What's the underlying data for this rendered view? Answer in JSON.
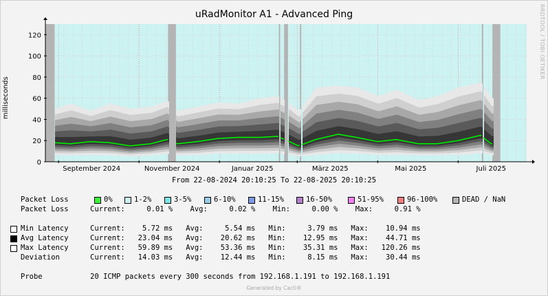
{
  "page": {
    "title": "uRadMonitor A1 - Advanced Ping",
    "watermark": "RRDTOOL / TOBI OETIKER",
    "range_text": "From 22-08-2024 20:10:25 To 22-08-2025 20:10:25",
    "footer": "Generated by Cacti®"
  },
  "chart_data": {
    "type": "area",
    "title": "uRadMonitor A1 - Advanced Ping",
    "ylabel": "milliseconds",
    "ylim": [
      0,
      130
    ],
    "yticks": [
      0,
      20,
      40,
      60,
      80,
      100,
      120
    ],
    "x_range": [
      "2024-08-22",
      "2025-08-22"
    ],
    "month_ticks": [
      {
        "label": "September 2024",
        "date": "2024-09-01"
      },
      {
        "label": "November 2024",
        "date": "2024-11-01"
      },
      {
        "label": "Januar 2025",
        "date": "2025-01-01"
      },
      {
        "label": "März 2025",
        "date": "2025-03-01"
      },
      {
        "label": "Mai 2025",
        "date": "2025-05-01"
      },
      {
        "label": "Juli 2025",
        "date": "2025-07-01"
      }
    ],
    "grid": true,
    "colors": {
      "background_ok": "#ccf2f2",
      "dead": "#b4b4b4",
      "avg_line": "#00ee00",
      "smoke": [
        "#e8e8e8",
        "#cfcfcf",
        "#a8a8a8",
        "#808080",
        "#5a5a5a",
        "#363636"
      ]
    },
    "dead_periods": [
      {
        "start": "2024-08-22",
        "end": "2024-08-29"
      },
      {
        "start": "2024-11-23",
        "end": "2024-11-29"
      },
      {
        "start": "2025-02-15",
        "end": "2025-02-16"
      },
      {
        "start": "2025-02-19",
        "end": "2025-02-22"
      },
      {
        "start": "2025-03-03",
        "end": "2025-03-04"
      },
      {
        "start": "2025-07-19",
        "end": "2025-07-20"
      },
      {
        "start": "2025-07-27",
        "end": "2025-08-02"
      }
    ],
    "series": [
      {
        "name": "Avg Latency",
        "x": [
          "2024-08-29",
          "2024-09-10",
          "2024-09-25",
          "2024-10-10",
          "2024-10-25",
          "2024-11-10",
          "2024-11-22",
          "2024-11-30",
          "2024-12-15",
          "2024-12-31",
          "2025-01-15",
          "2025-02-01",
          "2025-02-14",
          "2025-02-23",
          "2025-03-02",
          "2025-03-15",
          "2025-04-01",
          "2025-04-15",
          "2025-05-01",
          "2025-05-15",
          "2025-06-01",
          "2025-06-15",
          "2025-07-01",
          "2025-07-18",
          "2025-07-26"
        ],
        "values": [
          18,
          17,
          19,
          18,
          15,
          17,
          21,
          17,
          19,
          22,
          23,
          23,
          24,
          19,
          15,
          21,
          26,
          23,
          19,
          21,
          17,
          17,
          20,
          25,
          17
        ]
      },
      {
        "name": "Max Latency",
        "x": [
          "2024-08-29",
          "2024-09-10",
          "2024-09-25",
          "2024-10-10",
          "2024-10-25",
          "2024-11-10",
          "2024-11-22",
          "2024-11-30",
          "2024-12-15",
          "2024-12-31",
          "2025-01-15",
          "2025-02-01",
          "2025-02-14",
          "2025-02-23",
          "2025-03-02",
          "2025-03-15",
          "2025-04-01",
          "2025-04-15",
          "2025-05-01",
          "2025-05-15",
          "2025-06-01",
          "2025-06-15",
          "2025-07-01",
          "2025-07-18",
          "2025-07-26"
        ],
        "values": [
          50,
          55,
          48,
          55,
          50,
          52,
          58,
          48,
          52,
          56,
          55,
          60,
          62,
          55,
          48,
          70,
          72,
          70,
          62,
          68,
          58,
          62,
          70,
          75,
          60
        ]
      },
      {
        "name": "Min Latency",
        "x": [
          "2024-08-29",
          "2024-09-10",
          "2024-09-25",
          "2024-10-10",
          "2024-10-25",
          "2024-11-10",
          "2024-11-22",
          "2024-11-30",
          "2024-12-15",
          "2024-12-31",
          "2025-01-15",
          "2025-02-01",
          "2025-02-14",
          "2025-02-23",
          "2025-03-02",
          "2025-03-15",
          "2025-04-01",
          "2025-04-15",
          "2025-05-01",
          "2025-05-15",
          "2025-06-01",
          "2025-06-15",
          "2025-07-01",
          "2025-07-18",
          "2025-07-26"
        ],
        "values": [
          5,
          5,
          5,
          5,
          4,
          5,
          6,
          5,
          5,
          6,
          6,
          6,
          6,
          5,
          4,
          5,
          6,
          6,
          5,
          5,
          5,
          5,
          5,
          6,
          5
        ]
      }
    ]
  },
  "legend": {
    "packet_loss_label": "Packet Loss",
    "packet_loss_keys": [
      {
        "label": "0%",
        "color": "#3ff23f"
      },
      {
        "label": "1-2%",
        "color": "#ccf2f2"
      },
      {
        "label": "3-5%",
        "color": "#7fe5e5"
      },
      {
        "label": "6-10%",
        "color": "#99cce5"
      },
      {
        "label": "11-15%",
        "color": "#7f99e5"
      },
      {
        "label": "16-50%",
        "color": "#b27fcc"
      },
      {
        "label": "51-95%",
        "color": "#f27ff2"
      },
      {
        "label": "96-100%",
        "color": "#f27f7f"
      },
      {
        "label": "DEAD / NaN",
        "color": "#b4b4b4"
      }
    ],
    "packet_loss_stats": "Packet Loss     Current:     0.01 %    Avg:     0.02 %    Min:     0.00 %    Max:     0.91 %",
    "rows": [
      {
        "swatch": "#ffffff",
        "text": "Min Latency     Current:    5.72 ms   Avg:     5.54 ms   Min:     3.79 ms   Max:    10.94 ms"
      },
      {
        "swatch": "#000000",
        "text": "Avg Latency     Current:   23.04 ms   Avg:    20.62 ms   Min:    12.95 ms   Max:    44.71 ms"
      },
      {
        "swatch": "#ffffff",
        "text": "Max Latency     Current:   59.89 ms   Avg:    53.36 ms   Min:    35.31 ms   Max:   120.26 ms"
      },
      {
        "swatch": "",
        "text": "Deviation       Current:   14.03 ms   Avg:    12.44 ms   Min:     8.15 ms   Max:    30.44 ms"
      }
    ],
    "probe_text": "Probe           20 ICMP packets every 300 seconds from 192.168.1.191 to 192.168.1.191"
  }
}
